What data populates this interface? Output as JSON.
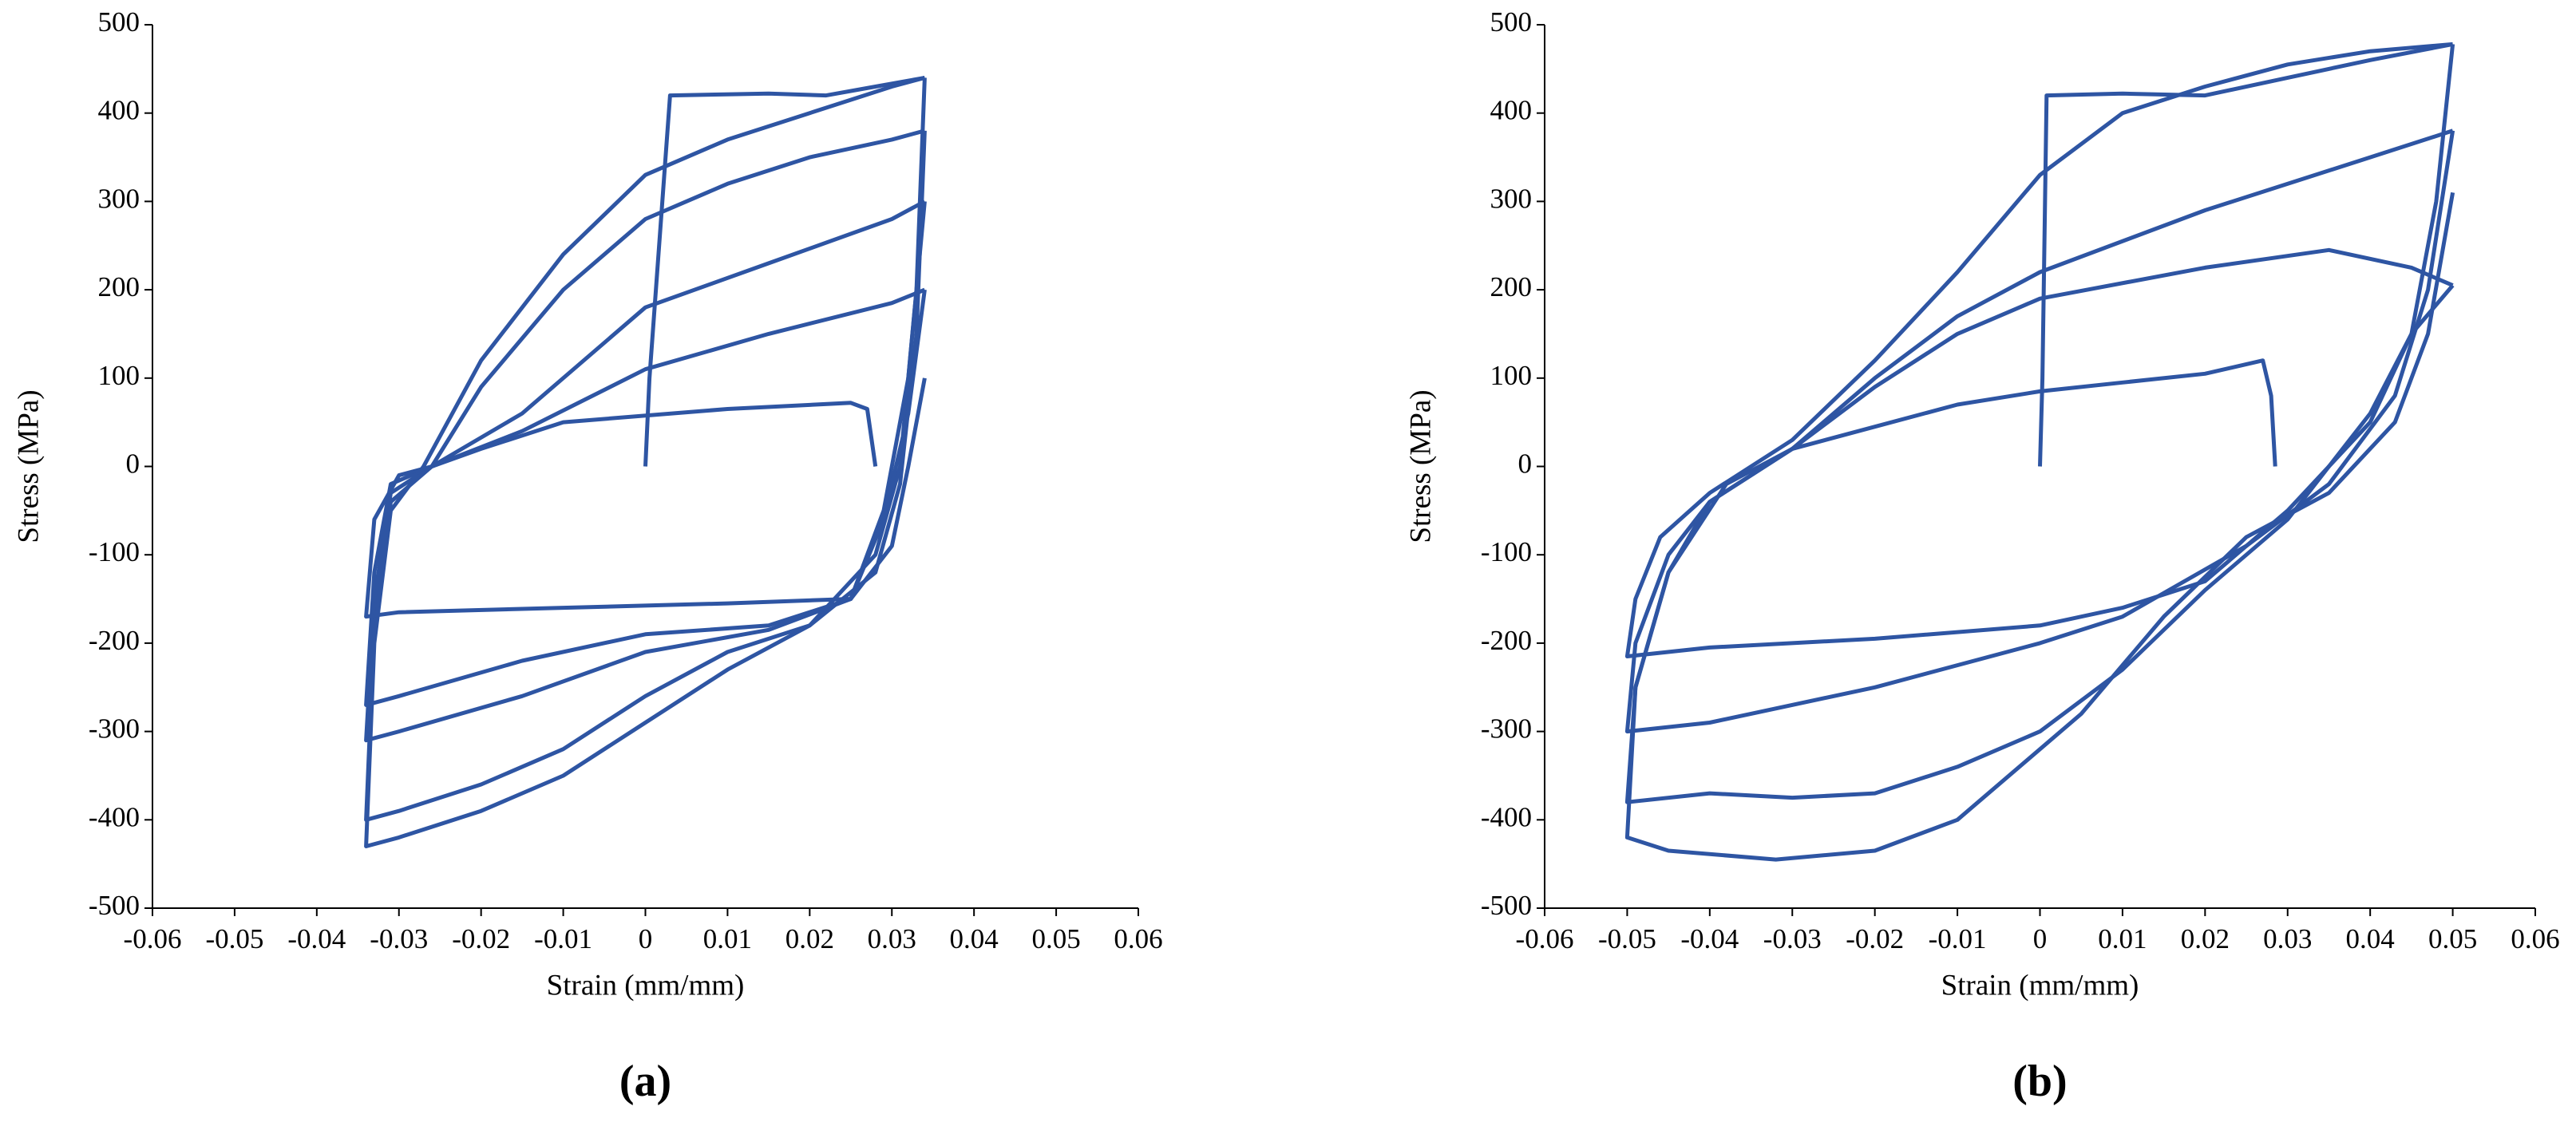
{
  "chart_data": [
    {
      "type": "line",
      "caption": "(a)",
      "xlabel": "Strain (mm/mm)",
      "ylabel": "Stress (MPa)",
      "xlim": [
        -0.06,
        0.06
      ],
      "ylim": [
        -500,
        500
      ],
      "xticks": [
        -0.06,
        -0.05,
        -0.04,
        -0.03,
        -0.02,
        -0.01,
        0,
        0.01,
        0.02,
        0.03,
        0.04,
        0.05,
        0.06
      ],
      "yticks": [
        -500,
        -400,
        -300,
        -200,
        -100,
        0,
        100,
        200,
        300,
        400,
        500
      ],
      "series": [
        {
          "color": "#2e55a3",
          "x": [
            0,
            0.0005,
            0.003,
            0.015,
            0.022,
            0.028,
            0.034
          ],
          "values": [
            0,
            100,
            420,
            422,
            420,
            430,
            440
          ]
        },
        {
          "color": "#2e55a3",
          "x": [
            0.034,
            0.033,
            0.031,
            0.028,
            0.02,
            0.01,
            0,
            -0.01,
            -0.02,
            -0.03,
            -0.034,
            -0.033,
            -0.031,
            -0.027,
            -0.02,
            -0.01,
            0,
            0.01,
            0.02,
            0.03,
            0.034
          ],
          "values": [
            440,
            200,
            0,
            -100,
            -180,
            -230,
            -290,
            -350,
            -390,
            -420,
            -430,
            -200,
            -50,
            0,
            120,
            240,
            330,
            370,
            400,
            430,
            440
          ]
        },
        {
          "color": "#2e55a3",
          "x": [
            0.034,
            0.033,
            0.031,
            0.028,
            0.02,
            0.01,
            0,
            -0.01,
            -0.02,
            -0.03,
            -0.034,
            -0.033,
            -0.031,
            -0.026,
            -0.02,
            -0.01,
            0,
            0.01,
            0.02,
            0.03,
            0.034
          ],
          "values": [
            380,
            150,
            -20,
            -120,
            -180,
            -210,
            -260,
            -320,
            -360,
            -390,
            -400,
            -180,
            -40,
            0,
            90,
            200,
            280,
            320,
            350,
            370,
            380
          ]
        },
        {
          "color": "#2e55a3",
          "x": [
            0.034,
            0.032,
            0.029,
            0.025,
            0.015,
            0,
            -0.015,
            -0.03,
            -0.034,
            -0.033,
            -0.031,
            -0.026,
            -0.015,
            0,
            0.015,
            0.03,
            0.034
          ],
          "values": [
            300,
            100,
            -50,
            -150,
            -185,
            -210,
            -260,
            -300,
            -310,
            -150,
            -30,
            0,
            60,
            180,
            230,
            280,
            300
          ]
        },
        {
          "color": "#2e55a3",
          "x": [
            0.034,
            0.032,
            0.029,
            0.025,
            0.015,
            0,
            -0.015,
            -0.03,
            -0.034,
            -0.033,
            -0.031,
            -0.026,
            -0.015,
            0,
            0.015,
            0.03,
            0.034
          ],
          "values": [
            200,
            60,
            -60,
            -150,
            -180,
            -190,
            -220,
            -260,
            -270,
            -120,
            -20,
            0,
            40,
            110,
            150,
            185,
            200
          ]
        },
        {
          "color": "#2e55a3",
          "x": [
            0.034,
            0.032,
            0.03,
            0.025,
            0.01,
            -0.01,
            -0.03,
            -0.034,
            -0.033,
            -0.03,
            -0.026,
            -0.02,
            -0.01,
            0.01,
            0.025,
            0.027,
            0.028
          ],
          "values": [
            100,
            0,
            -90,
            -150,
            -155,
            -160,
            -165,
            -170,
            -60,
            -10,
            0,
            20,
            50,
            65,
            72,
            65,
            0
          ]
        }
      ]
    },
    {
      "type": "line",
      "caption": "(b)",
      "xlabel": "Strain (mm/mm)",
      "ylabel": "Stress (MPa)",
      "xlim": [
        -0.06,
        0.06
      ],
      "ylim": [
        -500,
        500
      ],
      "xticks": [
        -0.06,
        -0.05,
        -0.04,
        -0.03,
        -0.02,
        -0.01,
        0,
        0.01,
        0.02,
        0.03,
        0.04,
        0.05,
        0.06
      ],
      "yticks": [
        -500,
        -400,
        -300,
        -200,
        -100,
        0,
        100,
        200,
        300,
        400,
        500
      ],
      "series": [
        {
          "color": "#2e55a3",
          "x": [
            0,
            0.0003,
            0.0008,
            0.01,
            0.02,
            0.03,
            0.04,
            0.05
          ],
          "values": [
            0,
            100,
            420,
            422,
            420,
            440,
            460,
            478
          ]
        },
        {
          "color": "#2e55a3",
          "x": [
            0.05,
            0.048,
            0.045,
            0.04,
            0.03,
            0.02,
            0.01,
            0,
            -0.02,
            -0.04,
            -0.05,
            -0.049,
            -0.046,
            -0.04,
            -0.03,
            -0.02,
            -0.01,
            0,
            0.01,
            0.02,
            0.03,
            0.04,
            0.05
          ],
          "values": [
            478,
            300,
            150,
            50,
            -50,
            -130,
            -160,
            -180,
            -195,
            -205,
            -215,
            -150,
            -80,
            -30,
            30,
            120,
            220,
            330,
            400,
            430,
            455,
            470,
            478
          ]
        },
        {
          "color": "#2e55a3",
          "x": [
            0.05,
            0.047,
            0.043,
            0.035,
            0.025,
            0.01,
            0,
            -0.02,
            -0.04,
            -0.05,
            -0.049,
            -0.045,
            -0.04,
            -0.03,
            -0.02,
            -0.01,
            0,
            0.02,
            0.04,
            0.05
          ],
          "values": [
            380,
            200,
            80,
            -20,
            -90,
            -170,
            -200,
            -250,
            -290,
            -300,
            -200,
            -100,
            -40,
            20,
            100,
            170,
            220,
            290,
            350,
            380
          ]
        },
        {
          "color": "#2e55a3",
          "x": [
            0.05,
            0.047,
            0.043,
            0.035,
            0.025,
            0.015,
            0.005,
            -0.01,
            -0.02,
            -0.032,
            -0.045,
            -0.05,
            -0.049,
            -0.045,
            -0.04,
            -0.03,
            -0.02,
            -0.01,
            0,
            0.02,
            0.035,
            0.045,
            0.05
          ],
          "values": [
            310,
            150,
            50,
            -30,
            -80,
            -170,
            -280,
            -400,
            -435,
            -445,
            -435,
            -420,
            -250,
            -120,
            -40,
            20,
            90,
            150,
            190,
            225,
            245,
            225,
            205
          ]
        },
        {
          "color": "#2e55a3",
          "x": [
            0.05,
            0.045,
            0.04,
            0.03,
            0.02,
            0.01,
            0,
            -0.01,
            -0.02,
            -0.03,
            -0.04,
            -0.05,
            -0.049,
            -0.045,
            -0.038,
            -0.03,
            -0.02,
            -0.01,
            0,
            0.01,
            0.02,
            0.027,
            0.028,
            0.0285
          ],
          "values": [
            205,
            150,
            60,
            -60,
            -140,
            -230,
            -300,
            -340,
            -370,
            -375,
            -370,
            -380,
            -250,
            -120,
            -20,
            20,
            45,
            70,
            85,
            95,
            105,
            120,
            80,
            0
          ]
        }
      ]
    }
  ]
}
